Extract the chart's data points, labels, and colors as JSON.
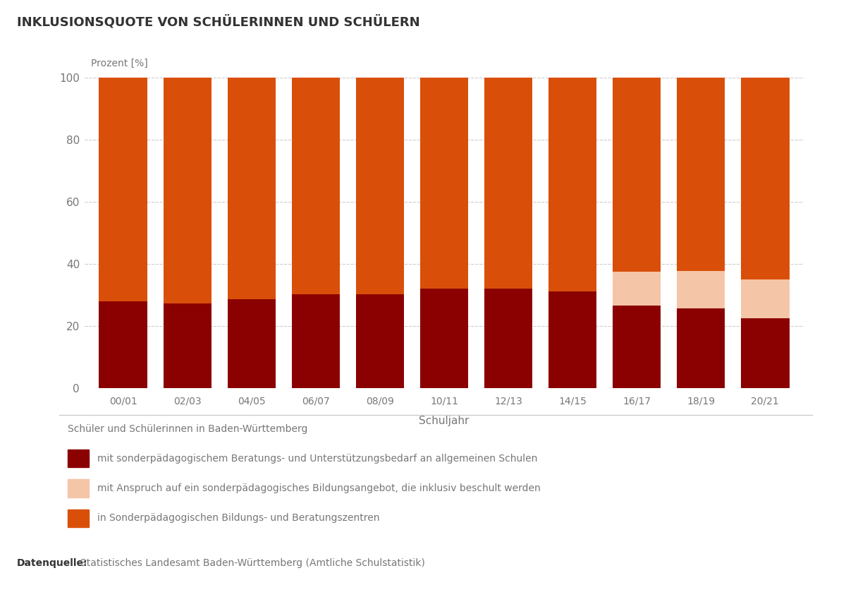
{
  "title": "INKLUSIONSQUOTE VON SCHÜLERINNEN UND SCHÜLERN",
  "ylabel_text": "Prozent [%]",
  "xlabel": "Schuljahr",
  "categories": [
    "00/01",
    "02/03",
    "04/05",
    "06/07",
    "08/09",
    "10/11",
    "12/13",
    "14/15",
    "16/17",
    "18/19",
    "20/21"
  ],
  "dark_red": [
    28.0,
    27.2,
    28.7,
    30.2,
    30.2,
    32.0,
    32.0,
    31.2,
    26.5,
    25.7,
    22.5
  ],
  "peach": [
    0.0,
    0.0,
    0.0,
    0.0,
    0.0,
    0.0,
    0.0,
    0.0,
    11.0,
    12.0,
    12.5
  ],
  "orange": [
    72.0,
    72.8,
    71.3,
    69.8,
    69.8,
    68.0,
    68.0,
    68.8,
    62.5,
    62.3,
    65.0
  ],
  "color_dark_red": "#8B0000",
  "color_peach": "#F5C5A8",
  "color_orange": "#D94F0A",
  "legend_title": "Schüler und Schülerinnen in Baden-Württemberg",
  "legend_labels": [
    "mit sonderpädagogischem Beratungs- und Unterstützungsbedarf an allgemeinen Schulen",
    "mit Anspruch auf ein sonderpädagogisches Bildungsangebot, die inklusiv beschult werden",
    "in Sonderpädagogischen Bildungs- und Beratungszentren"
  ],
  "source_bold": "Datenquelle:",
  "source_text": "Statistisches Landesamt Baden-Württemberg (Amtliche Schulstatistik)",
  "ylim": [
    0,
    100
  ],
  "yticks": [
    0,
    20,
    40,
    60,
    80,
    100
  ],
  "background_color": "#ffffff",
  "bar_width": 0.75,
  "grid_color": "#cccccc",
  "text_color": "#777777",
  "title_color": "#333333"
}
